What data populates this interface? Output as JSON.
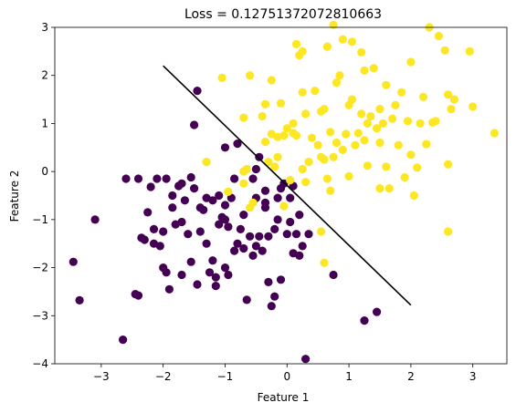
{
  "chart_data": {
    "type": "scatter",
    "title": "Loss = 0.12751372072810663",
    "xlabel": "Feature 1",
    "ylabel": "Feature 2",
    "xlim": [
      -3.75,
      3.55
    ],
    "ylim": [
      -4,
      3
    ],
    "xticks": [
      -3,
      -2,
      -1,
      0,
      1,
      2,
      3
    ],
    "yticks": [
      -4,
      -3,
      -2,
      -1,
      0,
      1,
      2,
      3
    ],
    "grid": false,
    "colors": {
      "class0": "#440154",
      "class1": "#fde725",
      "boundary": "#000000"
    },
    "decision_boundary": {
      "x": [
        -2.0,
        2.0
      ],
      "y": [
        2.2,
        -2.78
      ]
    },
    "series": [
      {
        "class": 0,
        "points": [
          [
            -3.45,
            -1.88
          ],
          [
            -3.35,
            -2.68
          ],
          [
            -3.1,
            -1.0
          ],
          [
            -2.65,
            -3.5
          ],
          [
            -2.6,
            -0.15
          ],
          [
            -2.45,
            -2.55
          ],
          [
            -2.4,
            -2.58
          ],
          [
            -2.4,
            -0.15
          ],
          [
            -2.35,
            -1.38
          ],
          [
            -2.3,
            -1.42
          ],
          [
            -2.25,
            -0.85
          ],
          [
            -2.2,
            -0.32
          ],
          [
            -2.15,
            -1.2
          ],
          [
            -2.15,
            -1.5
          ],
          [
            -2.1,
            -0.15
          ],
          [
            -2.05,
            -1.55
          ],
          [
            -2.0,
            -1.25
          ],
          [
            -2.0,
            -2.0
          ],
          [
            -1.95,
            -2.1
          ],
          [
            -1.95,
            -0.15
          ],
          [
            -1.9,
            -2.45
          ],
          [
            -1.85,
            -0.5
          ],
          [
            -1.85,
            -0.75
          ],
          [
            -1.8,
            -1.1
          ],
          [
            -1.75,
            -0.3
          ],
          [
            -1.7,
            -1.05
          ],
          [
            -1.7,
            -0.25
          ],
          [
            -1.65,
            -0.6
          ],
          [
            -1.6,
            -1.3
          ],
          [
            -1.55,
            -1.88
          ],
          [
            -1.55,
            -0.12
          ],
          [
            -1.5,
            -0.35
          ],
          [
            -1.5,
            0.97
          ],
          [
            -1.45,
            1.68
          ],
          [
            -1.45,
            -2.35
          ],
          [
            -1.4,
            -1.25
          ],
          [
            -1.4,
            -0.75
          ],
          [
            -1.35,
            -0.8
          ],
          [
            -1.3,
            -0.55
          ],
          [
            -1.3,
            -1.5
          ],
          [
            -1.25,
            -2.1
          ],
          [
            -1.2,
            -0.6
          ],
          [
            -1.2,
            -1.85
          ],
          [
            -1.15,
            -2.2
          ],
          [
            -1.15,
            -2.38
          ],
          [
            -1.1,
            -1.1
          ],
          [
            -1.1,
            -0.5
          ],
          [
            -1.05,
            -0.95
          ],
          [
            -1.0,
            -0.7
          ],
          [
            -1.0,
            -2.0
          ],
          [
            -1.0,
            -1.0
          ],
          [
            -1.0,
            0.5
          ],
          [
            -0.95,
            -1.15
          ],
          [
            -0.95,
            -2.15
          ],
          [
            -0.9,
            -0.55
          ],
          [
            -0.85,
            -0.15
          ],
          [
            -0.85,
            -1.65
          ],
          [
            -0.8,
            -1.5
          ],
          [
            -0.8,
            0.58
          ],
          [
            -0.75,
            -1.2
          ],
          [
            -0.7,
            -1.6
          ],
          [
            -0.7,
            -0.9
          ],
          [
            -0.65,
            -2.67
          ],
          [
            -0.6,
            -1.35
          ],
          [
            -0.55,
            -0.15
          ],
          [
            -0.55,
            -1.75
          ],
          [
            -0.5,
            -1.55
          ],
          [
            -0.5,
            -0.55
          ],
          [
            -0.45,
            -1.35
          ],
          [
            -0.4,
            -1.65
          ],
          [
            -0.35,
            -0.4
          ],
          [
            -0.35,
            -0.75
          ],
          [
            -0.3,
            -1.35
          ],
          [
            -0.3,
            -2.3
          ],
          [
            -0.25,
            -2.8
          ],
          [
            -0.2,
            -2.6
          ],
          [
            -0.2,
            -1.2
          ],
          [
            -0.15,
            -0.55
          ],
          [
            -0.15,
            -1.0
          ],
          [
            -0.1,
            -0.35
          ],
          [
            -0.1,
            -2.25
          ],
          [
            -0.05,
            -0.25
          ],
          [
            0.0,
            -1.3
          ],
          [
            0.05,
            -0.55
          ],
          [
            0.05,
            -1.05
          ],
          [
            0.1,
            -0.3
          ],
          [
            0.1,
            -1.7
          ],
          [
            0.15,
            -1.3
          ],
          [
            0.2,
            -1.75
          ],
          [
            0.2,
            -0.9
          ],
          [
            0.25,
            -1.55
          ],
          [
            0.3,
            -3.9
          ],
          [
            0.35,
            -1.3
          ],
          [
            0.75,
            -2.15
          ],
          [
            1.25,
            -3.1
          ],
          [
            1.45,
            -2.92
          ],
          [
            -0.45,
            0.3
          ],
          [
            -0.5,
            0.05
          ],
          [
            -0.35,
            -0.65
          ],
          [
            -1.7,
            -2.15
          ]
        ]
      },
      {
        "class": 1,
        "points": [
          [
            -1.3,
            0.2
          ],
          [
            -1.05,
            1.95
          ],
          [
            -0.7,
            0.0
          ],
          [
            -0.7,
            1.12
          ],
          [
            -0.65,
            0.05
          ],
          [
            -0.6,
            2.0
          ],
          [
            -0.4,
            1.15
          ],
          [
            -0.35,
            1.4
          ],
          [
            -0.35,
            0.62
          ],
          [
            -0.3,
            0.2
          ],
          [
            -0.25,
            0.78
          ],
          [
            -0.25,
            1.9
          ],
          [
            -0.2,
            0.1
          ],
          [
            -0.15,
            0.72
          ],
          [
            -0.15,
            0.3
          ],
          [
            -0.1,
            1.42
          ],
          [
            -0.05,
            0.75
          ],
          [
            -0.05,
            -0.72
          ],
          [
            0.0,
            0.9
          ],
          [
            0.1,
            0.8
          ],
          [
            0.1,
            1.0
          ],
          [
            0.15,
            2.65
          ],
          [
            0.15,
            0.75
          ],
          [
            0.2,
            2.42
          ],
          [
            0.25,
            0.05
          ],
          [
            0.25,
            1.65
          ],
          [
            0.3,
            1.2
          ],
          [
            0.35,
            0.2
          ],
          [
            0.4,
            0.7
          ],
          [
            0.45,
            1.68
          ],
          [
            0.5,
            0.55
          ],
          [
            0.55,
            0.3
          ],
          [
            0.55,
            1.25
          ],
          [
            0.6,
            0.25
          ],
          [
            0.6,
            1.3
          ],
          [
            0.65,
            2.6
          ],
          [
            0.65,
            -0.15
          ],
          [
            0.7,
            -0.4
          ],
          [
            0.7,
            0.82
          ],
          [
            0.75,
            3.05
          ],
          [
            0.75,
            0.3
          ],
          [
            0.8,
            0.6
          ],
          [
            0.8,
            1.85
          ],
          [
            0.85,
            2.0
          ],
          [
            0.9,
            2.75
          ],
          [
            0.9,
            0.45
          ],
          [
            0.95,
            0.78
          ],
          [
            1.0,
            1.38
          ],
          [
            1.0,
            -0.1
          ],
          [
            1.05,
            2.7
          ],
          [
            1.05,
            1.5
          ],
          [
            1.1,
            0.55
          ],
          [
            1.15,
            0.8
          ],
          [
            1.2,
            2.48
          ],
          [
            1.2,
            1.2
          ],
          [
            1.25,
            0.65
          ],
          [
            1.25,
            2.1
          ],
          [
            1.3,
            0.12
          ],
          [
            1.3,
            1.0
          ],
          [
            1.35,
            1.15
          ],
          [
            1.4,
            2.15
          ],
          [
            1.45,
            0.9
          ],
          [
            1.5,
            0.6
          ],
          [
            1.5,
            -0.35
          ],
          [
            1.5,
            1.3
          ],
          [
            1.55,
            1.0
          ],
          [
            1.6,
            0.1
          ],
          [
            1.6,
            1.8
          ],
          [
            1.65,
            -0.35
          ],
          [
            1.7,
            1.1
          ],
          [
            1.75,
            1.38
          ],
          [
            1.8,
            0.55
          ],
          [
            1.85,
            1.65
          ],
          [
            1.9,
            -0.12
          ],
          [
            1.95,
            1.05
          ],
          [
            2.0,
            0.35
          ],
          [
            2.0,
            2.28
          ],
          [
            2.05,
            -0.5
          ],
          [
            2.1,
            0.08
          ],
          [
            2.15,
            1.0
          ],
          [
            2.2,
            1.55
          ],
          [
            2.25,
            0.57
          ],
          [
            2.3,
            3.0
          ],
          [
            2.35,
            1.02
          ],
          [
            2.4,
            1.05
          ],
          [
            2.45,
            2.82
          ],
          [
            2.55,
            2.52
          ],
          [
            2.6,
            1.6
          ],
          [
            2.65,
            1.3
          ],
          [
            2.7,
            1.5
          ],
          [
            2.6,
            0.15
          ],
          [
            2.6,
            -1.25
          ],
          [
            0.55,
            -1.25
          ],
          [
            0.6,
            -1.9
          ],
          [
            0.25,
            2.5
          ],
          [
            3.35,
            0.8
          ],
          [
            2.95,
            2.5
          ],
          [
            3.0,
            1.35
          ],
          [
            0.3,
            -0.22
          ],
          [
            0.05,
            -0.18
          ],
          [
            -0.6,
            -0.75
          ],
          [
            -0.55,
            -0.65
          ],
          [
            -0.95,
            -0.42
          ],
          [
            -0.7,
            -0.25
          ]
        ]
      }
    ]
  }
}
